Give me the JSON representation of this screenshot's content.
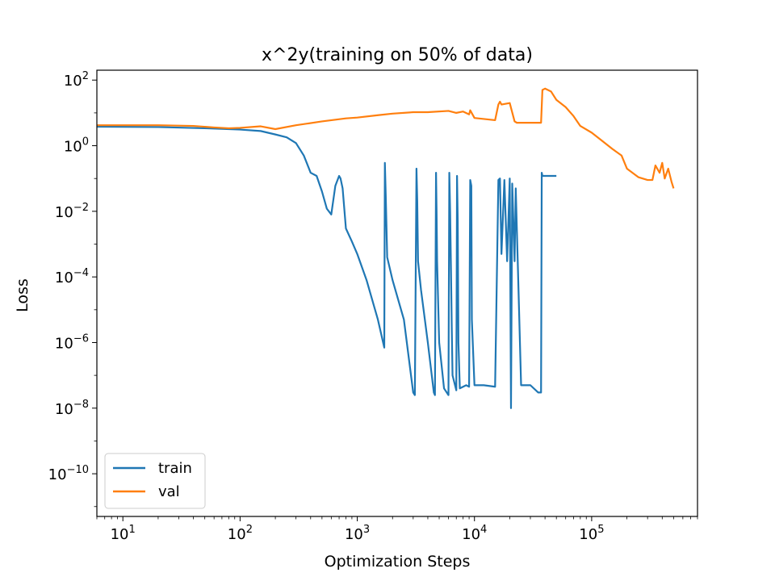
{
  "chart_data": {
    "type": "line",
    "title": "x^2y(training on 50% of data)",
    "xlabel": "Optimization Steps",
    "ylabel": "Loss",
    "xscale": "log",
    "yscale": "log",
    "xlim": [
      6,
      800000
    ],
    "ylim": [
      5e-12,
      200
    ],
    "grid": false,
    "legend_position": "lower-left",
    "xticks": [
      {
        "value": 10,
        "base": "10",
        "exp": "1"
      },
      {
        "value": 100,
        "base": "10",
        "exp": "2"
      },
      {
        "value": 1000,
        "base": "10",
        "exp": "3"
      },
      {
        "value": 10000,
        "base": "10",
        "exp": "4"
      },
      {
        "value": 100000,
        "base": "10",
        "exp": "5"
      }
    ],
    "yticks": [
      {
        "value": 100,
        "base": "10",
        "exp": "2"
      },
      {
        "value": 1,
        "base": "10",
        "exp": "0"
      },
      {
        "value": 0.01,
        "base": "10",
        "exp": "−2"
      },
      {
        "value": 0.0001,
        "base": "10",
        "exp": "−4"
      },
      {
        "value": 1e-06,
        "base": "10",
        "exp": "−6"
      },
      {
        "value": 1e-08,
        "base": "10",
        "exp": "−8"
      },
      {
        "value": 1e-10,
        "base": "10",
        "exp": "−10"
      }
    ],
    "series": [
      {
        "name": "train",
        "color": "#1f77b4",
        "x": [
          6,
          20,
          50,
          100,
          150,
          200,
          250,
          300,
          350,
          400,
          450,
          500,
          550,
          600,
          650,
          700,
          720,
          750,
          800,
          900,
          1000,
          1200,
          1500,
          1700,
          1720,
          1750,
          1800,
          2000,
          2500,
          3000,
          3100,
          3200,
          3250,
          3300,
          3500,
          4000,
          4500,
          4600,
          4700,
          4750,
          4800,
          5000,
          5500,
          6000,
          6100,
          6200,
          6300,
          6400,
          6500,
          7000,
          7100,
          7200,
          7300,
          7500,
          8000,
          8500,
          9000,
          9200,
          9400,
          9500,
          10000,
          12000,
          15000,
          16000,
          16500,
          17000,
          18000,
          19000,
          20000,
          20500,
          21000,
          22000,
          22500,
          25000,
          30000,
          35000,
          37000,
          37500,
          38000,
          40000,
          45000,
          50000
        ],
        "y": [
          3.8,
          3.7,
          3.4,
          3.1,
          2.8,
          2.2,
          1.8,
          1.2,
          0.5,
          0.15,
          0.12,
          0.04,
          0.012,
          0.008,
          0.06,
          0.12,
          0.1,
          0.05,
          0.003,
          0.0012,
          0.0005,
          8e-05,
          5e-06,
          7e-07,
          0.3,
          0.03,
          0.0004,
          8e-05,
          5e-06,
          3e-08,
          2.5e-08,
          0.2,
          0.02,
          0.0003,
          4e-05,
          1e-06,
          3e-08,
          2.5e-08,
          0.15,
          0.01,
          0.0003,
          1e-06,
          4e-08,
          2.5e-08,
          0.15,
          0.01,
          0.0002,
          3e-06,
          1e-07,
          3.5e-08,
          0.12,
          0.005,
          1e-06,
          4e-08,
          4.5e-08,
          5e-08,
          4.5e-08,
          0.09,
          0.06,
          5e-06,
          5e-08,
          5e-08,
          4.5e-08,
          0.09,
          0.1,
          0.0005,
          0.09,
          0.0003,
          0.1,
          1e-08,
          0.07,
          0.0003,
          0.05,
          5e-08,
          5e-08,
          3e-08,
          3e-08,
          0.15,
          0.12,
          0.12,
          0.12,
          0.12
        ]
      },
      {
        "name": "val",
        "color": "#ff7f0e",
        "x": [
          6,
          20,
          40,
          60,
          80,
          100,
          150,
          200,
          300,
          500,
          800,
          1000,
          1500,
          2000,
          3000,
          4000,
          6000,
          7000,
          8000,
          9000,
          9200,
          10000,
          15000,
          16000,
          16500,
          17000,
          20000,
          22000,
          23000,
          25000,
          30000,
          35000,
          37000,
          38000,
          40000,
          45000,
          50000,
          60000,
          70000,
          80000,
          100000,
          120000,
          150000,
          180000,
          200000,
          250000,
          300000,
          330000,
          350000,
          380000,
          400000,
          420000,
          450000,
          480000,
          500000
        ],
        "y": [
          4.2,
          4.2,
          4.0,
          3.6,
          3.4,
          3.5,
          3.9,
          3.2,
          4.2,
          5.5,
          6.8,
          7.2,
          8.5,
          9.5,
          10.5,
          10.5,
          11.5,
          10.0,
          11.0,
          9.0,
          12.0,
          7.0,
          6.0,
          18,
          22,
          18,
          20,
          5.5,
          5.0,
          5.0,
          5.0,
          5.0,
          5.0,
          50,
          55,
          45,
          25,
          15,
          8,
          4,
          2.5,
          1.5,
          0.8,
          0.5,
          0.2,
          0.11,
          0.09,
          0.09,
          0.25,
          0.15,
          0.3,
          0.1,
          0.2,
          0.08,
          0.05
        ]
      }
    ]
  }
}
